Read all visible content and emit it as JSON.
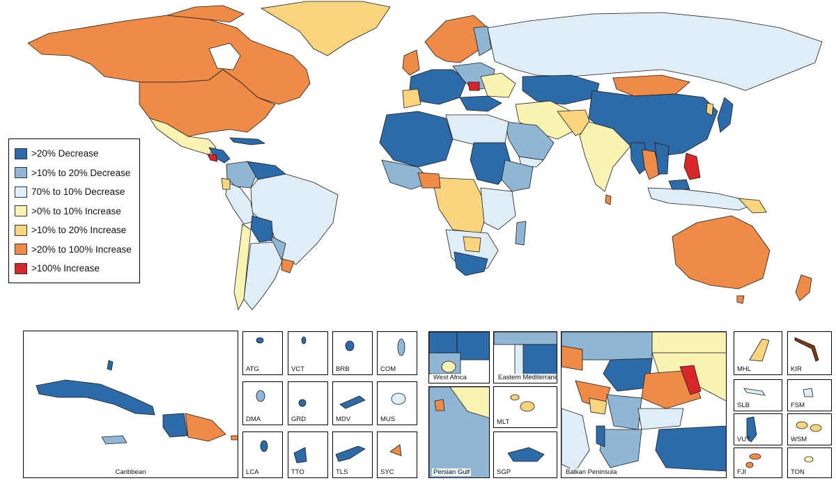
{
  "colors": {
    "dec20": "#2d6aa8",
    "dec10_20": "#90b6d6",
    "dec0_10": "#deedf6",
    "inc0_10": "#fbf3b3",
    "inc10_20": "#f8d47e",
    "inc20_100": "#f08a47",
    "inc100": "#d7272a"
  },
  "legend": {
    "items": [
      {
        "label": ">20% Decrease",
        "color": "#2d6aa8"
      },
      {
        "label": ">10% to 20% Decrease",
        "color": "#90b6d6"
      },
      {
        "label": "70% to 10% Decrease",
        "color": "#deedf6"
      },
      {
        "label": ">0% to 10% Increase",
        "color": "#fbf3b3"
      },
      {
        "label": ">10% to 20% Increase",
        "color": "#f8d47e"
      },
      {
        "label": ">20% to 100% Increase",
        "color": "#f08a47"
      },
      {
        "label": ">100% Increase",
        "color": "#d7272a"
      }
    ]
  },
  "insets": {
    "caribbean": "Caribbean",
    "atg": "ATG",
    "vct": "VCT",
    "brb": "BRB",
    "com": "COM",
    "dma": "DMA",
    "grd": "GRD",
    "mdv": "MDV",
    "mus": "MUS",
    "lca": "LCA",
    "tto": "TTO",
    "tls": "TLS",
    "syc": "SYC",
    "west_africa": "West Africa",
    "eastern_med": "Eastern Mediterranean",
    "persian_gulf": "Persian Gulf",
    "mlt": "MLT",
    "sgp": "SGP",
    "balkan": "Balkan Peninsula",
    "mhl": "MHL",
    "kir": "KIR",
    "slb": "SLB",
    "fsm": "FSM",
    "vut": "VUT",
    "wsm": "WSM",
    "fji": "FJI",
    "ton": "TON"
  }
}
